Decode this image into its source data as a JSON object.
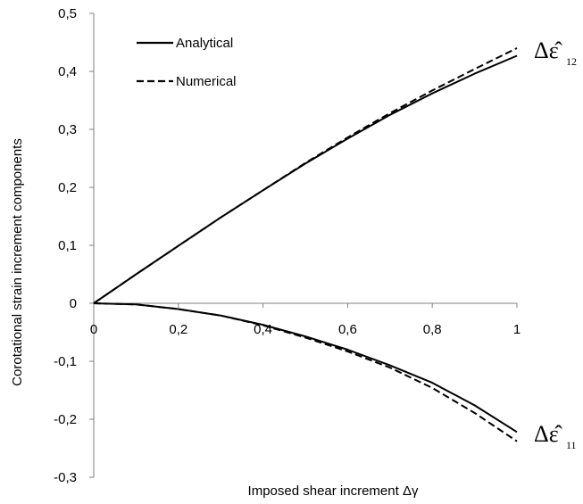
{
  "chart_data": {
    "type": "line",
    "xlabel": "Imposed shear increment Δγ",
    "ylabel": "Corotational strain increment components",
    "xlim": [
      0,
      1
    ],
    "ylim": [
      -0.3,
      0.5
    ],
    "x_ticks": [
      "0",
      "0,2",
      "0,4",
      "0,6",
      "0,8",
      "1"
    ],
    "y_ticks": [
      "0,5",
      "0,4",
      "0,3",
      "0,2",
      "0,1",
      "0",
      "-0,1",
      "-0,2",
      "-0,3"
    ],
    "legend": {
      "position": "top-left",
      "entries": [
        {
          "label": "Analytical",
          "style": "solid"
        },
        {
          "label": "Numerical",
          "style": "dashed"
        }
      ]
    },
    "grid": false,
    "x": [
      0,
      0.1,
      0.2,
      0.3,
      0.4,
      0.5,
      0.6,
      0.7,
      0.8,
      0.9,
      1.0
    ],
    "series": [
      {
        "group": "Δε̂12",
        "style": "solid",
        "values": [
          0,
          0.05,
          0.099,
          0.148,
          0.195,
          0.241,
          0.284,
          0.325,
          0.362,
          0.396,
          0.427
        ]
      },
      {
        "group": "Δε̂12",
        "style": "dashed",
        "values": [
          0,
          0.05,
          0.099,
          0.148,
          0.195,
          0.242,
          0.286,
          0.328,
          0.367,
          0.404,
          0.44
        ]
      },
      {
        "group": "Δε̂11",
        "style": "solid",
        "values": [
          0,
          -0.002,
          -0.01,
          -0.021,
          -0.037,
          -0.057,
          -0.08,
          -0.107,
          -0.137,
          -0.176,
          -0.222
        ]
      },
      {
        "group": "Δε̂11",
        "style": "dashed",
        "values": [
          0,
          -0.002,
          -0.01,
          -0.021,
          -0.038,
          -0.059,
          -0.083,
          -0.111,
          -0.146,
          -0.189,
          -0.238
        ]
      }
    ],
    "annotations": [
      {
        "text": "Δε̂",
        "subscript": "12"
      },
      {
        "text": "Δε̂",
        "subscript": "11"
      }
    ]
  }
}
